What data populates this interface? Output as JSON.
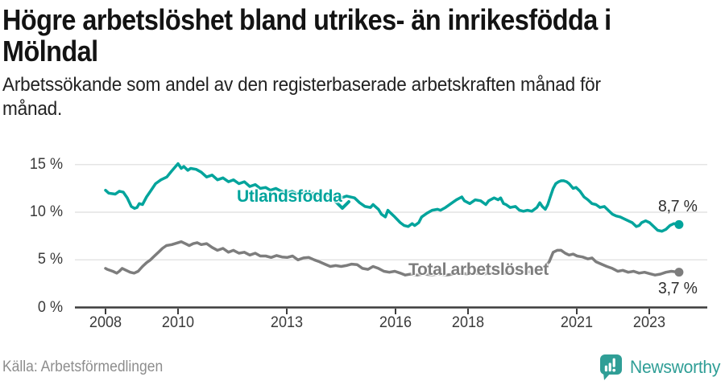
{
  "header": {
    "title_line1": "Högre arbetslöshet bland utrikes- än inrikesfödda i",
    "title_line2": "Mölndal",
    "subtitle_line1": "Arbetssökande som andel av den registerbaserade arbetskraften månad för",
    "subtitle_line2": "månad."
  },
  "chart_data": {
    "type": "line",
    "title": "Högre arbetslöshet bland utrikes- än inrikesfödda i Mölndal",
    "subtitle": "Arbetssökande som andel av den registerbaserade arbetskraften månad för månad.",
    "grid": "horizontal",
    "x_axis": {
      "unit": "year",
      "range": [
        2008.0,
        2023.82
      ],
      "ticks": [
        {
          "label": "2008",
          "value": 2008
        },
        {
          "label": "2010",
          "value": 2010
        },
        {
          "label": "2013",
          "value": 2013
        },
        {
          "label": "2016",
          "value": 2016
        },
        {
          "label": "2018",
          "value": 2018
        },
        {
          "label": "2021",
          "value": 2021
        },
        {
          "label": "2023",
          "value": 2023
        }
      ]
    },
    "y_axis": {
      "unit": "%",
      "range": [
        0,
        16
      ],
      "ticks": [
        {
          "label": "15 %",
          "value": 15
        },
        {
          "label": "10 %",
          "value": 10
        },
        {
          "label": "5 %",
          "value": 5
        },
        {
          "label": "0 %",
          "value": 0
        }
      ]
    },
    "series": [
      {
        "name": "Utlandsfödda",
        "color": "#00a49c",
        "end_label": "8,7 %",
        "end_value": 8.7,
        "points": [
          [
            2008.0,
            12.3
          ],
          [
            2008.09,
            12.0
          ],
          [
            2008.27,
            11.9
          ],
          [
            2008.38,
            12.2
          ],
          [
            2008.49,
            12.1
          ],
          [
            2008.6,
            11.5
          ],
          [
            2008.71,
            10.6
          ],
          [
            2008.8,
            10.4
          ],
          [
            2008.87,
            10.5
          ],
          [
            2008.93,
            10.9
          ],
          [
            2009.02,
            10.8
          ],
          [
            2009.13,
            11.6
          ],
          [
            2009.24,
            12.2
          ],
          [
            2009.38,
            13.0
          ],
          [
            2009.53,
            13.4
          ],
          [
            2009.69,
            13.7
          ],
          [
            2009.82,
            14.3
          ],
          [
            2010.0,
            15.1
          ],
          [
            2010.09,
            14.6
          ],
          [
            2010.16,
            14.8
          ],
          [
            2010.27,
            14.4
          ],
          [
            2010.35,
            14.6
          ],
          [
            2010.5,
            14.5
          ],
          [
            2010.64,
            14.2
          ],
          [
            2010.79,
            13.7
          ],
          [
            2010.94,
            13.9
          ],
          [
            2011.09,
            13.4
          ],
          [
            2011.24,
            13.6
          ],
          [
            2011.39,
            13.2
          ],
          [
            2011.53,
            13.4
          ],
          [
            2011.68,
            13.0
          ],
          [
            2011.83,
            13.2
          ],
          [
            2011.98,
            12.7
          ],
          [
            2012.13,
            12.9
          ],
          [
            2012.27,
            12.5
          ],
          [
            2012.42,
            12.6
          ],
          [
            2012.55,
            12.3
          ],
          [
            2012.7,
            12.5
          ],
          [
            2012.85,
            12.2
          ],
          [
            2013.0,
            12.0
          ],
          [
            2013.15,
            12.2
          ],
          [
            2013.3,
            11.9
          ],
          [
            2013.45,
            12.1
          ],
          [
            2013.6,
            11.8
          ],
          [
            2013.75,
            12.0
          ],
          [
            2013.9,
            11.7
          ],
          [
            2014.05,
            11.9
          ],
          [
            2014.2,
            11.6
          ],
          [
            2014.35,
            11.8
          ],
          [
            2014.5,
            11.5
          ],
          [
            2014.65,
            11.7
          ],
          [
            2014.87,
            11.5
          ],
          [
            2015.01,
            11.0
          ],
          [
            2015.16,
            10.6
          ],
          [
            2015.31,
            10.5
          ],
          [
            2015.38,
            10.8
          ],
          [
            2015.53,
            10.3
          ],
          [
            2015.61,
            9.8
          ],
          [
            2015.72,
            9.5
          ],
          [
            2015.79,
            10.2
          ],
          [
            2015.87,
            9.9
          ],
          [
            2015.98,
            9.5
          ],
          [
            2016.13,
            8.9
          ],
          [
            2016.24,
            8.6
          ],
          [
            2016.35,
            8.5
          ],
          [
            2016.46,
            8.8
          ],
          [
            2016.53,
            8.6
          ],
          [
            2016.64,
            8.9
          ],
          [
            2016.72,
            9.5
          ],
          [
            2016.87,
            9.9
          ],
          [
            2017.01,
            10.2
          ],
          [
            2017.16,
            10.3
          ],
          [
            2017.24,
            10.2
          ],
          [
            2017.38,
            10.5
          ],
          [
            2017.53,
            10.9
          ],
          [
            2017.68,
            11.3
          ],
          [
            2017.83,
            11.6
          ],
          [
            2017.9,
            11.2
          ],
          [
            2018.05,
            10.9
          ],
          [
            2018.2,
            11.3
          ],
          [
            2018.35,
            11.2
          ],
          [
            2018.49,
            10.8
          ],
          [
            2018.57,
            11.2
          ],
          [
            2018.72,
            11.5
          ],
          [
            2018.83,
            11.3
          ],
          [
            2018.9,
            11.5
          ],
          [
            2018.98,
            10.9
          ],
          [
            2019.05,
            10.8
          ],
          [
            2019.16,
            10.5
          ],
          [
            2019.31,
            10.6
          ],
          [
            2019.42,
            10.2
          ],
          [
            2019.53,
            10.1
          ],
          [
            2019.64,
            10.2
          ],
          [
            2019.76,
            10.1
          ],
          [
            2019.9,
            10.5
          ],
          [
            2019.98,
            11.0
          ],
          [
            2020.05,
            10.6
          ],
          [
            2020.13,
            10.3
          ],
          [
            2020.2,
            10.8
          ],
          [
            2020.27,
            11.6
          ],
          [
            2020.35,
            12.5
          ],
          [
            2020.42,
            13.0
          ],
          [
            2020.5,
            13.2
          ],
          [
            2020.57,
            13.3
          ],
          [
            2020.64,
            13.3
          ],
          [
            2020.72,
            13.2
          ],
          [
            2020.79,
            13.0
          ],
          [
            2020.9,
            12.5
          ],
          [
            2020.98,
            12.6
          ],
          [
            2021.09,
            12.2
          ],
          [
            2021.2,
            11.6
          ],
          [
            2021.31,
            11.3
          ],
          [
            2021.42,
            10.9
          ],
          [
            2021.53,
            10.8
          ],
          [
            2021.64,
            10.5
          ],
          [
            2021.76,
            10.6
          ],
          [
            2021.87,
            10.2
          ],
          [
            2021.98,
            9.8
          ],
          [
            2022.09,
            9.6
          ],
          [
            2022.2,
            9.5
          ],
          [
            2022.31,
            9.3
          ],
          [
            2022.42,
            9.1
          ],
          [
            2022.53,
            8.9
          ],
          [
            2022.64,
            8.5
          ],
          [
            2022.72,
            8.6
          ],
          [
            2022.79,
            8.9
          ],
          [
            2022.9,
            9.1
          ],
          [
            2023.01,
            8.9
          ],
          [
            2023.12,
            8.5
          ],
          [
            2023.23,
            8.1
          ],
          [
            2023.35,
            8.0
          ],
          [
            2023.46,
            8.2
          ],
          [
            2023.57,
            8.6
          ],
          [
            2023.68,
            8.8
          ],
          [
            2023.82,
            8.7
          ]
        ]
      },
      {
        "name": "Total arbetslöshet",
        "color": "#7d7d7d",
        "end_label": "3,7 %",
        "end_value": 3.7,
        "points": [
          [
            2008.0,
            4.1
          ],
          [
            2008.05,
            4.0
          ],
          [
            2008.2,
            3.8
          ],
          [
            2008.31,
            3.6
          ],
          [
            2008.38,
            3.8
          ],
          [
            2008.46,
            4.1
          ],
          [
            2008.57,
            3.9
          ],
          [
            2008.68,
            3.7
          ],
          [
            2008.79,
            3.6
          ],
          [
            2008.9,
            3.8
          ],
          [
            2009.02,
            4.3
          ],
          [
            2009.13,
            4.7
          ],
          [
            2009.24,
            5.0
          ],
          [
            2009.35,
            5.4
          ],
          [
            2009.46,
            5.8
          ],
          [
            2009.57,
            6.2
          ],
          [
            2009.68,
            6.5
          ],
          [
            2009.83,
            6.6
          ],
          [
            2010.0,
            6.8
          ],
          [
            2010.09,
            6.9
          ],
          [
            2010.2,
            6.7
          ],
          [
            2010.31,
            6.5
          ],
          [
            2010.42,
            6.7
          ],
          [
            2010.53,
            6.8
          ],
          [
            2010.64,
            6.6
          ],
          [
            2010.79,
            6.7
          ],
          [
            2010.94,
            6.3
          ],
          [
            2011.09,
            6.0
          ],
          [
            2011.24,
            6.2
          ],
          [
            2011.39,
            5.8
          ],
          [
            2011.53,
            6.0
          ],
          [
            2011.68,
            5.7
          ],
          [
            2011.83,
            5.8
          ],
          [
            2011.98,
            5.5
          ],
          [
            2012.13,
            5.7
          ],
          [
            2012.27,
            5.4
          ],
          [
            2012.42,
            5.4
          ],
          [
            2012.57,
            5.25
          ],
          [
            2012.72,
            5.45
          ],
          [
            2012.87,
            5.3
          ],
          [
            2013.01,
            5.25
          ],
          [
            2013.16,
            5.4
          ],
          [
            2013.31,
            5.0
          ],
          [
            2013.46,
            5.2
          ],
          [
            2013.61,
            5.25
          ],
          [
            2013.76,
            5.0
          ],
          [
            2013.9,
            4.8
          ],
          [
            2014.05,
            4.55
          ],
          [
            2014.2,
            4.3
          ],
          [
            2014.35,
            4.4
          ],
          [
            2014.5,
            4.3
          ],
          [
            2014.64,
            4.4
          ],
          [
            2014.79,
            4.55
          ],
          [
            2014.94,
            4.5
          ],
          [
            2015.09,
            4.1
          ],
          [
            2015.24,
            4.0
          ],
          [
            2015.38,
            4.3
          ],
          [
            2015.53,
            4.1
          ],
          [
            2015.68,
            3.8
          ],
          [
            2015.83,
            3.7
          ],
          [
            2015.98,
            3.8
          ],
          [
            2016.13,
            3.6
          ],
          [
            2016.27,
            3.4
          ],
          [
            2016.42,
            3.5
          ],
          [
            2016.6,
            3.4
          ],
          [
            2016.8,
            3.5
          ],
          [
            2017.0,
            3.4
          ],
          [
            2017.2,
            3.5
          ],
          [
            2017.4,
            3.4
          ],
          [
            2017.6,
            3.5
          ],
          [
            2017.8,
            3.6
          ],
          [
            2018.0,
            3.5
          ],
          [
            2018.2,
            3.6
          ],
          [
            2018.4,
            3.5
          ],
          [
            2018.6,
            3.6
          ],
          [
            2018.8,
            3.7
          ],
          [
            2019.0,
            3.6
          ],
          [
            2019.2,
            3.7
          ],
          [
            2019.4,
            3.6
          ],
          [
            2019.6,
            3.7
          ],
          [
            2019.8,
            3.8
          ],
          [
            2020.0,
            3.9
          ],
          [
            2020.1,
            4.2
          ],
          [
            2020.24,
            4.8
          ],
          [
            2020.35,
            5.8
          ],
          [
            2020.46,
            6.0
          ],
          [
            2020.57,
            6.0
          ],
          [
            2020.68,
            5.7
          ],
          [
            2020.79,
            5.5
          ],
          [
            2020.9,
            5.6
          ],
          [
            2021.01,
            5.4
          ],
          [
            2021.16,
            5.3
          ],
          [
            2021.31,
            5.1
          ],
          [
            2021.42,
            5.2
          ],
          [
            2021.53,
            4.8
          ],
          [
            2021.68,
            4.55
          ],
          [
            2021.83,
            4.3
          ],
          [
            2021.98,
            4.1
          ],
          [
            2022.13,
            3.8
          ],
          [
            2022.27,
            3.9
          ],
          [
            2022.42,
            3.7
          ],
          [
            2022.57,
            3.8
          ],
          [
            2022.72,
            3.6
          ],
          [
            2022.87,
            3.7
          ],
          [
            2023.01,
            3.55
          ],
          [
            2023.16,
            3.4
          ],
          [
            2023.31,
            3.5
          ],
          [
            2023.46,
            3.7
          ],
          [
            2023.61,
            3.8
          ],
          [
            2023.82,
            3.7
          ]
        ]
      }
    ],
    "legend_position": "inline-labels"
  },
  "footer": {
    "source": "Källa: Arbetsförmedlingen",
    "brand": "Newsworthy",
    "brand_color": "#2f9e96"
  }
}
